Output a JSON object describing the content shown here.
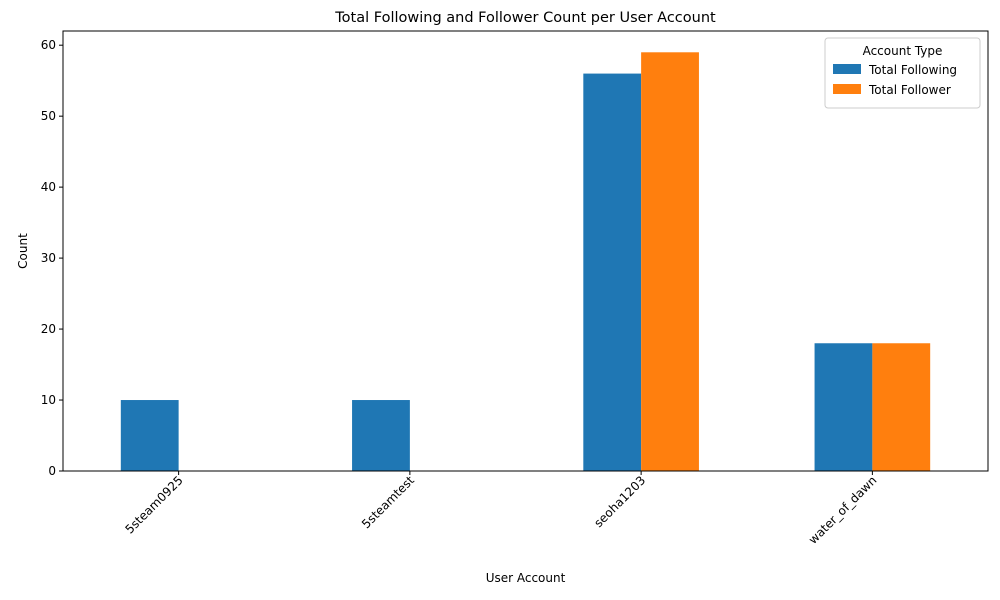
{
  "chart_data": {
    "type": "bar",
    "title": "Total Following and Follower Count per User Account",
    "xlabel": "User Account",
    "ylabel": "Count",
    "categories": [
      "5steam0925",
      "5steamtest",
      "seoha1203",
      "water_of_dawn"
    ],
    "series": [
      {
        "name": "Total Following",
        "color": "#1f77b4",
        "values": [
          10,
          10,
          56,
          18
        ]
      },
      {
        "name": "Total Follower",
        "color": "#ff7f0e",
        "values": [
          0,
          0,
          59,
          18
        ]
      }
    ],
    "ylim": [
      0,
      62
    ],
    "yticks": [
      0,
      10,
      20,
      30,
      40,
      50,
      60
    ],
    "xtick_rotation": 45,
    "grid": false,
    "legend": {
      "title": "Account Type",
      "placement": "top-right"
    }
  }
}
